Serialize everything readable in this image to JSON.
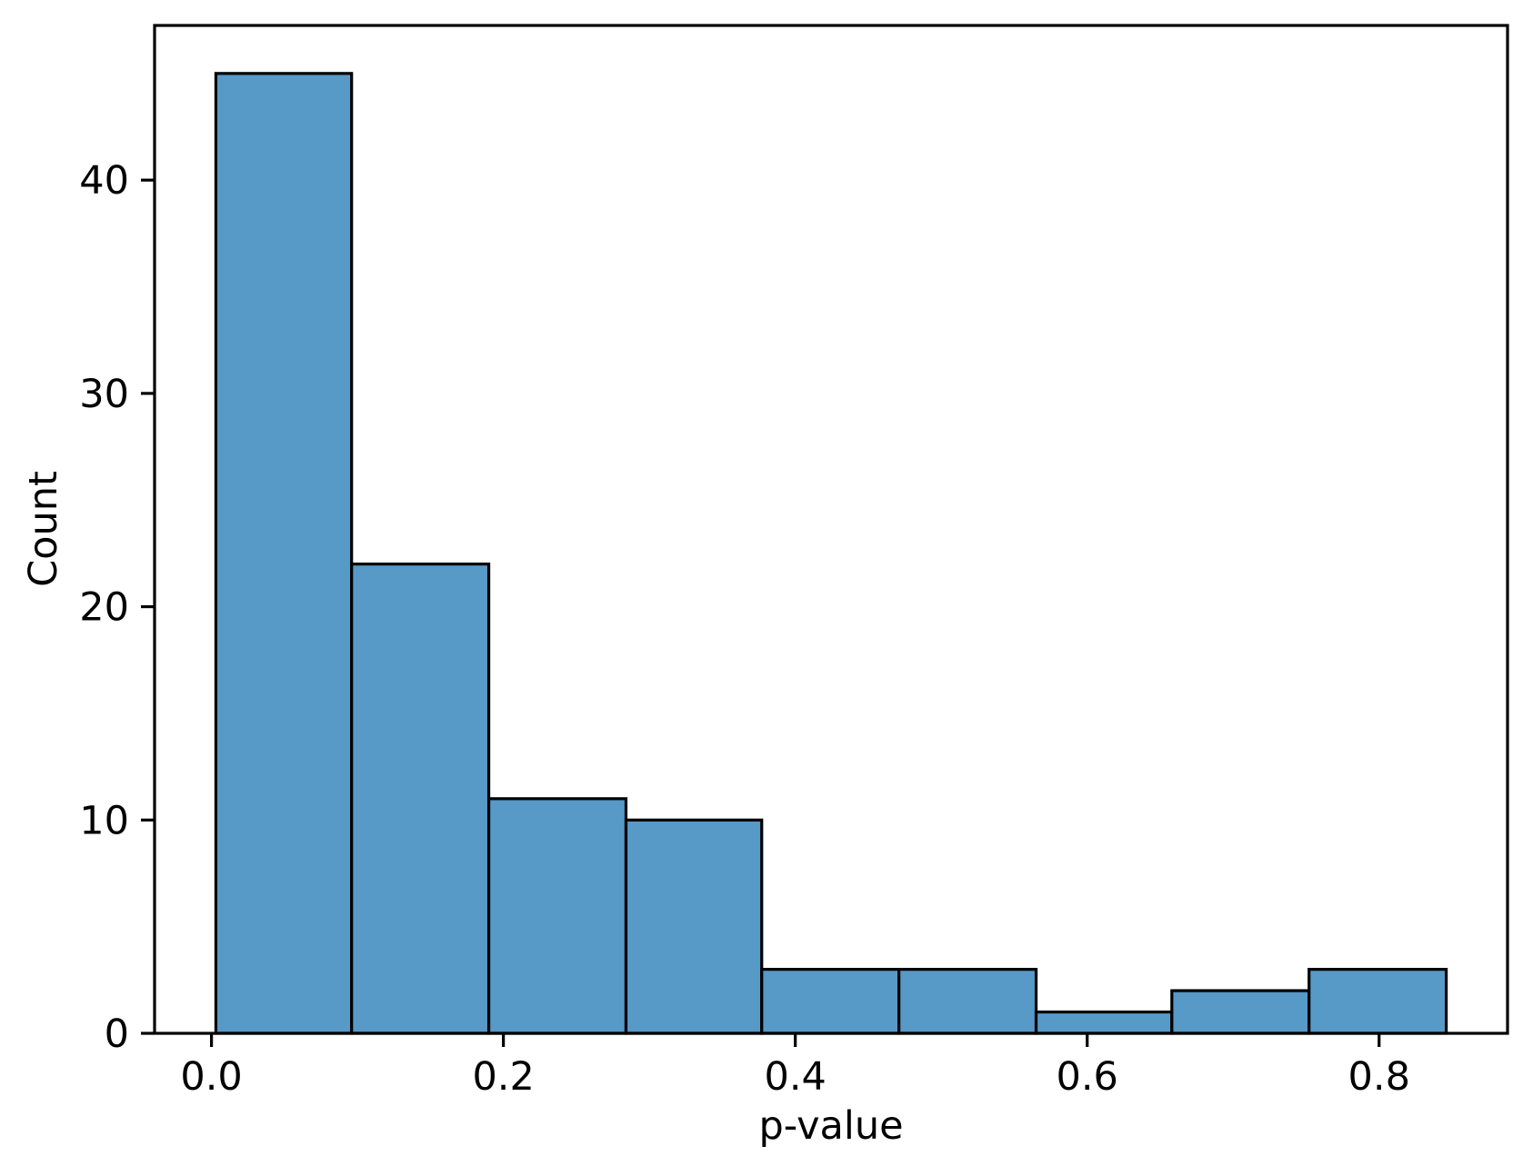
{
  "chart_data": {
    "type": "bar",
    "subtype": "histogram",
    "title": "",
    "xlabel": "p-value",
    "ylabel": "Count",
    "bin_edges": [
      0.003,
      0.096,
      0.19,
      0.284,
      0.377,
      0.471,
      0.565,
      0.658,
      0.752,
      0.846
    ],
    "counts": [
      45,
      22,
      11,
      10,
      3,
      3,
      1,
      2,
      3
    ],
    "total_count": 100,
    "xticks": [
      0.0,
      0.2,
      0.4,
      0.6,
      0.8
    ],
    "xtick_labels": [
      "0.0",
      "0.2",
      "0.4",
      "0.6",
      "0.8"
    ],
    "yticks": [
      0,
      10,
      20,
      30,
      40
    ],
    "ytick_labels": [
      "0",
      "10",
      "20",
      "30",
      "40"
    ],
    "xlim": [
      -0.039,
      0.888
    ],
    "ylim": [
      0,
      47.25
    ],
    "grid": false,
    "legend_position": "none",
    "colors": {
      "bar_fill": "#5799c7",
      "bar_edge": "#000000",
      "axis": "#000000",
      "text": "#000000",
      "background": "#ffffff"
    }
  }
}
